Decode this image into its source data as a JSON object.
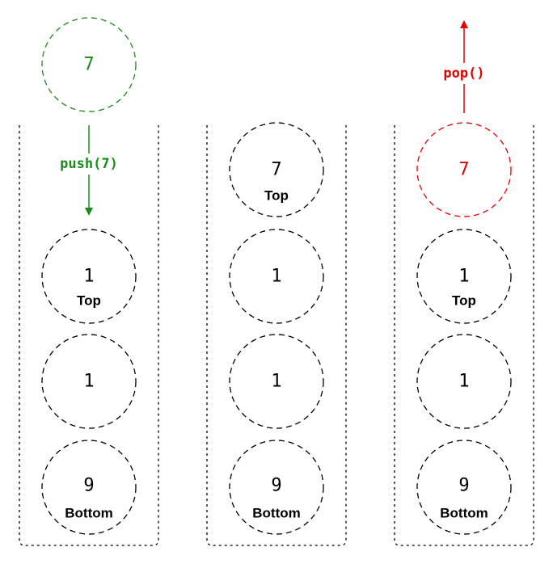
{
  "colors": {
    "push": "#1a8c1a",
    "pop": "#e60000",
    "default": "#000000"
  },
  "incoming": {
    "value": "7"
  },
  "push_label": "push(7)",
  "pop_label": "pop()",
  "stacks": [
    {
      "items": [
        {
          "value": "1",
          "label": "Top"
        },
        {
          "value": "1",
          "label": ""
        },
        {
          "value": "9",
          "label": "Bottom"
        }
      ]
    },
    {
      "items": [
        {
          "value": "7",
          "label": "Top"
        },
        {
          "value": "1",
          "label": ""
        },
        {
          "value": "1",
          "label": ""
        },
        {
          "value": "9",
          "label": "Bottom"
        }
      ]
    },
    {
      "items": [
        {
          "value": "7",
          "label": "",
          "highlight": "pop"
        },
        {
          "value": "1",
          "label": "Top"
        },
        {
          "value": "1",
          "label": ""
        },
        {
          "value": "9",
          "label": "Bottom"
        }
      ]
    }
  ]
}
